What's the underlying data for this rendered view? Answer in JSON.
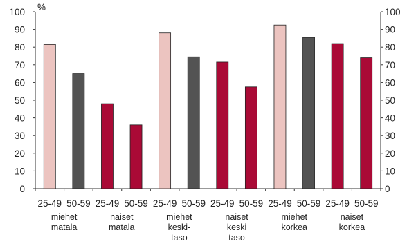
{
  "chart_data": {
    "type": "bar",
    "title": "",
    "xlabel": "",
    "ylabel": "%",
    "ylim": [
      0,
      100
    ],
    "yticks": [
      0,
      10,
      20,
      30,
      40,
      50,
      60,
      70,
      80,
      90,
      100
    ],
    "grid": false,
    "legend": "none",
    "categories": [
      "25-49",
      "50-59",
      "25-49",
      "50-59",
      "25-49",
      "50-59",
      "25-49",
      "50-59",
      "25-49",
      "50-59",
      "25-49",
      "50-59"
    ],
    "values": [
      81.5,
      65,
      48,
      36,
      88,
      74.5,
      71.5,
      57.5,
      92.5,
      85.5,
      82,
      74
    ],
    "bar_colors": [
      "#ecc4c0",
      "#535353",
      "#aa0a36",
      "#aa0a36",
      "#ecc4c0",
      "#535353",
      "#aa0a36",
      "#aa0a36",
      "#ecc4c0",
      "#535353",
      "#aa0a36",
      "#aa0a36"
    ],
    "groups": [
      {
        "lines": [
          "miehet",
          "matala"
        ]
      },
      {
        "lines": [
          "naiset",
          "matala"
        ]
      },
      {
        "lines": [
          "miehet",
          "keski-",
          "taso"
        ]
      },
      {
        "lines": [
          "naiset",
          "keski",
          "taso"
        ]
      },
      {
        "lines": [
          "miehet",
          "korkea"
        ]
      },
      {
        "lines": [
          "naiset",
          "korkea"
        ]
      }
    ]
  }
}
